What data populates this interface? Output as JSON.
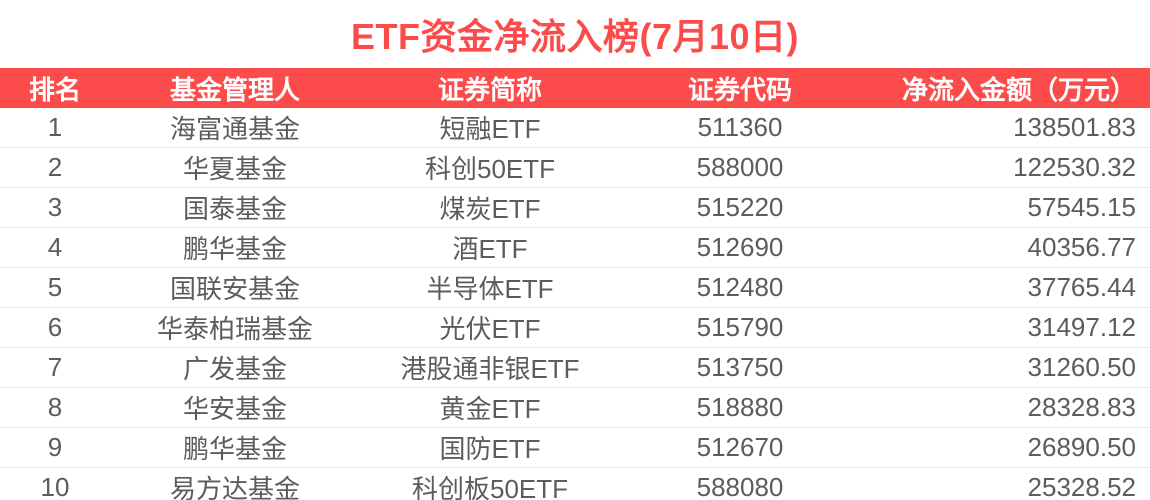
{
  "ui": {
    "colors": {
      "accent_red": "#FC4B4B",
      "header_text": "#FFFFFF",
      "body_text": "#5C5C5C",
      "row_divider": "#EAEAEF",
      "background": "#FFFFFF"
    }
  },
  "chart_data": {
    "type": "table",
    "title": "ETF资金净流入榜(7月10日)",
    "columns": [
      "排名",
      "基金管理人",
      "证券简称",
      "证券代码",
      "净流入金额（万元）"
    ],
    "column_aligns": [
      "center",
      "center",
      "center",
      "center",
      "right"
    ],
    "rows": [
      [
        "1",
        "海富通基金",
        "短融ETF",
        "511360",
        "138501.83"
      ],
      [
        "2",
        "华夏基金",
        "科创50ETF",
        "588000",
        "122530.32"
      ],
      [
        "3",
        "国泰基金",
        "煤炭ETF",
        "515220",
        "57545.15"
      ],
      [
        "4",
        "鹏华基金",
        "酒ETF",
        "512690",
        "40356.77"
      ],
      [
        "5",
        "国联安基金",
        "半导体ETF",
        "512480",
        "37765.44"
      ],
      [
        "6",
        "华泰柏瑞基金",
        "光伏ETF",
        "515790",
        "31497.12"
      ],
      [
        "7",
        "广发基金",
        "港股通非银ETF",
        "513750",
        "31260.50"
      ],
      [
        "8",
        "华安基金",
        "黄金ETF",
        "518880",
        "28328.83"
      ],
      [
        "9",
        "鹏华基金",
        "国防ETF",
        "512670",
        "26890.50"
      ],
      [
        "10",
        "易方达基金",
        "科创板50ETF",
        "588080",
        "25328.52"
      ]
    ]
  }
}
